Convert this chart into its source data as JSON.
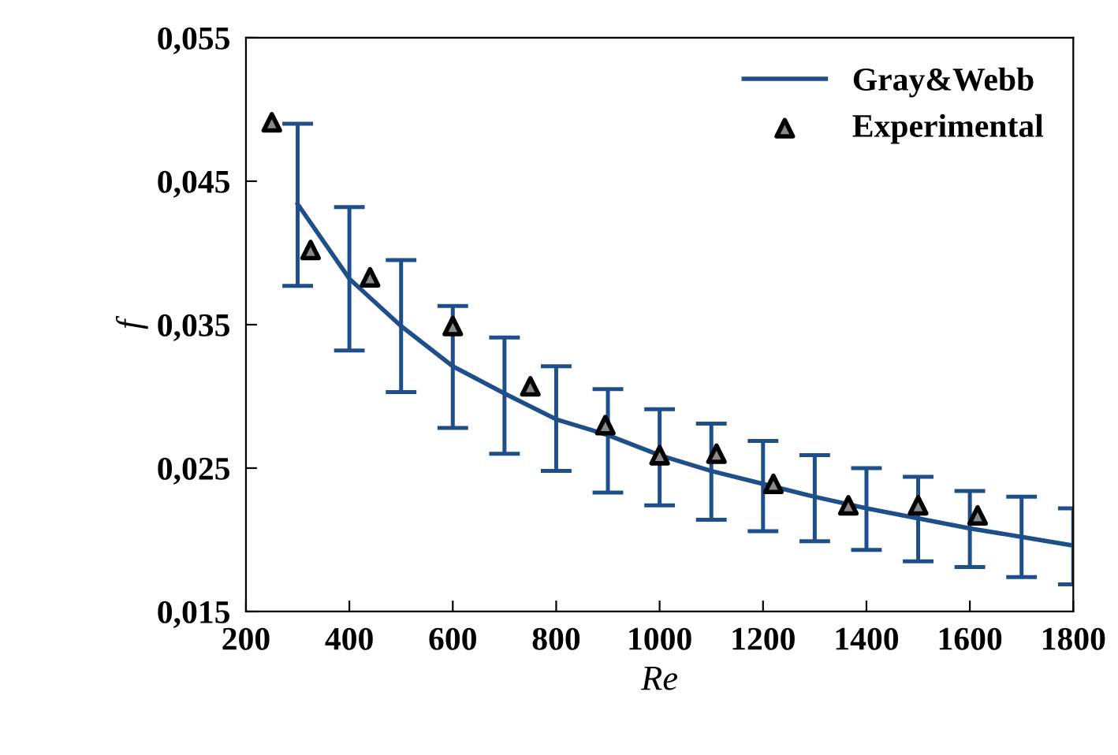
{
  "chart_data": {
    "type": "line",
    "xlabel": "Re",
    "ylabel": "f",
    "xlim": [
      200,
      1800
    ],
    "ylim": [
      0.015,
      0.055
    ],
    "xticks": [
      200,
      400,
      600,
      800,
      1000,
      1200,
      1400,
      1600,
      1800
    ],
    "yticks": [
      {
        "value": 0.015,
        "label": "0,015"
      },
      {
        "value": 0.025,
        "label": "0,025"
      },
      {
        "value": 0.035,
        "label": "0,035"
      },
      {
        "value": 0.045,
        "label": "0,045"
      },
      {
        "value": 0.055,
        "label": "0,055"
      }
    ],
    "grid": false,
    "legend": "top right",
    "series": [
      {
        "name": "Gray&Webb",
        "color": "#1f4f8a",
        "marker": "none",
        "line_style": "solid",
        "x": [
          300,
          400,
          500,
          600,
          700,
          800,
          900,
          1000,
          1100,
          1200,
          1300,
          1400,
          1500,
          1600,
          1700,
          1800
        ],
        "values": [
          0.0434,
          0.0382,
          0.0349,
          0.0321,
          0.0302,
          0.0284,
          0.0273,
          0.0259,
          0.0248,
          0.0239,
          0.023,
          0.0222,
          0.0215,
          0.0208,
          0.0202,
          0.0196
        ],
        "errors": [
          [
            0.0377,
            0.049
          ],
          [
            0.0332,
            0.0432
          ],
          [
            0.0303,
            0.0395
          ],
          [
            0.0278,
            0.0363
          ],
          [
            0.026,
            0.0341
          ],
          [
            0.0248,
            0.0321
          ],
          [
            0.0233,
            0.0305
          ],
          [
            0.0224,
            0.0291
          ],
          [
            0.0214,
            0.0281
          ],
          [
            0.0206,
            0.0269
          ],
          [
            0.0199,
            0.0259
          ],
          [
            0.0193,
            0.025
          ],
          [
            0.0185,
            0.0244
          ],
          [
            0.0181,
            0.0234
          ],
          [
            0.0174,
            0.023
          ],
          [
            0.0169,
            0.0222
          ]
        ]
      },
      {
        "name": "Experimental",
        "type": "scatter",
        "color": "#000000",
        "marker": "triangle",
        "x": [
          250,
          325,
          440,
          600,
          750,
          895,
          1000,
          1110,
          1220,
          1365,
          1500,
          1615
        ],
        "values": [
          0.0491,
          0.0402,
          0.0383,
          0.0349,
          0.0307,
          0.028,
          0.0259,
          0.026,
          0.0239,
          0.0224,
          0.0224,
          0.0217
        ]
      }
    ]
  }
}
